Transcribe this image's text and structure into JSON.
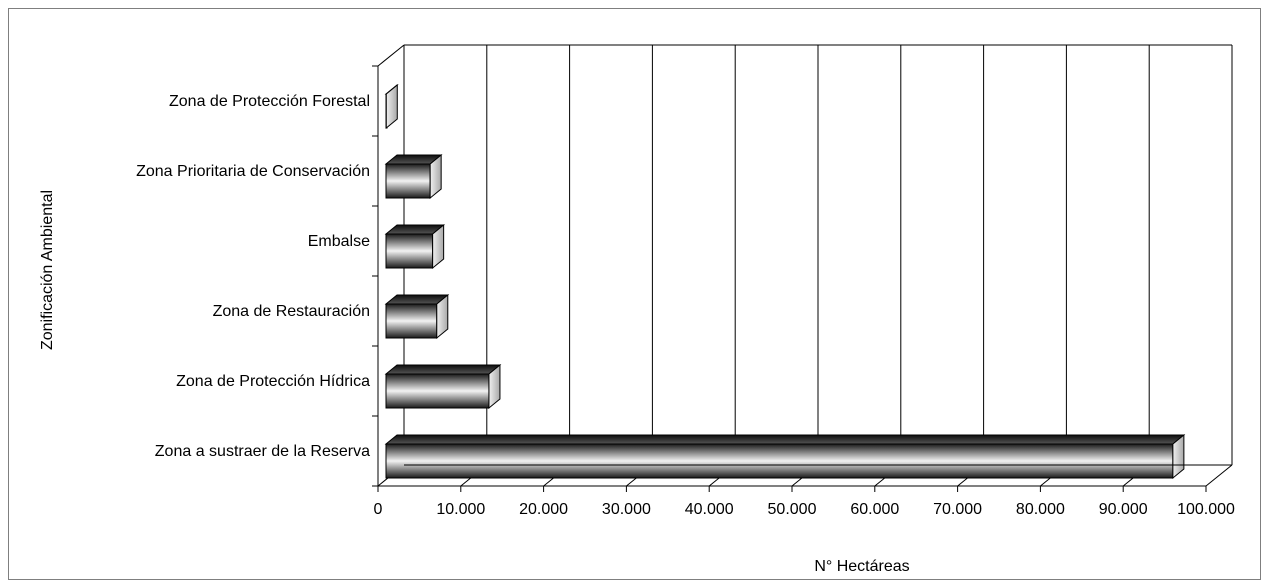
{
  "chart_data": {
    "type": "bar",
    "orientation": "horizontal",
    "style": "3d",
    "title": "",
    "xlabel": "N° Hectáreas",
    "ylabel": "Zonificación Ambiental",
    "categories": [
      "Zona a sustraer de la Reserva",
      "Zona de Protección Hídrica",
      "Zona de Restauración",
      "Embalse",
      "Zona Prioritaria de Conservación",
      "Zona de Protección Forestal"
    ],
    "values": [
      96000,
      13400,
      7100,
      6600,
      6300,
      1000
    ],
    "xlim": [
      0,
      100000
    ],
    "x_ticks": [
      0,
      10000,
      20000,
      30000,
      40000,
      50000,
      60000,
      70000,
      80000,
      90000,
      100000
    ],
    "x_tick_labels": [
      "0",
      "10.000",
      "20.000",
      "30.000",
      "40.000",
      "50.000",
      "60.000",
      "70.000",
      "80.000",
      "90.000",
      "100.000"
    ],
    "grid": "vertical",
    "legend": "none",
    "colors": {
      "bar_dark": "#1a1a1a",
      "bar_light": "#f2f2f2",
      "grid": "#000000",
      "axis": "#000000"
    }
  }
}
